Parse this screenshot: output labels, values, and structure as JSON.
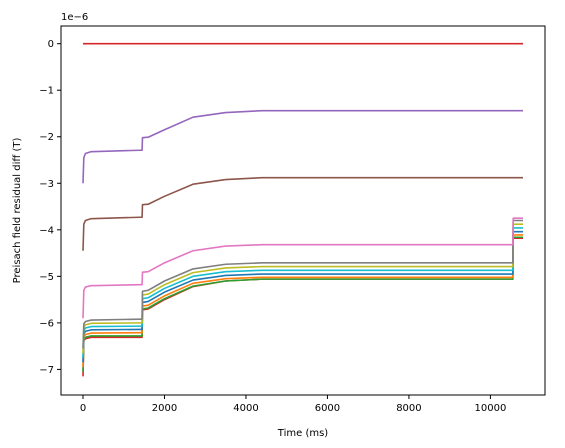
{
  "chart_data": {
    "type": "line",
    "title": "",
    "xlabel": "Time (ms)",
    "ylabel": "Preisach field residual diff (T)",
    "offset_text": "1e−6",
    "xlim": [
      -540,
      11340
    ],
    "ylim": [
      -7.55,
      0.38
    ],
    "xticks": [
      0,
      2000,
      4000,
      6000,
      8000,
      10000
    ],
    "xtick_labels": [
      "0",
      "2000",
      "4000",
      "6000",
      "8000",
      "10000"
    ],
    "yticks": [
      0,
      -1,
      -2,
      -3,
      -4,
      -5,
      -6,
      -7
    ],
    "ytick_labels": [
      "0",
      "−1",
      "−2",
      "−3",
      "−4",
      "−5",
      "−6",
      "−7"
    ],
    "grid": false,
    "legend": "none",
    "series": [
      {
        "color": "#d62728",
        "x": [
          0,
          10800
        ],
        "y": [
          0,
          0
        ]
      },
      {
        "color": "#9467bd",
        "x": [
          0,
          20,
          60,
          200,
          1400,
          1450,
          1460,
          1600,
          2000,
          2700,
          3500,
          4400,
          6000,
          10800
        ],
        "y": [
          -3.0,
          -2.45,
          -2.36,
          -2.32,
          -2.29,
          -2.29,
          -2.02,
          -2.01,
          -1.85,
          -1.58,
          -1.48,
          -1.44,
          -1.44,
          -1.44
        ]
      },
      {
        "color": "#8c564b",
        "x": [
          0,
          20,
          60,
          200,
          1400,
          1450,
          1460,
          1600,
          2000,
          2700,
          3500,
          4400,
          6000,
          10800
        ],
        "y": [
          -4.45,
          -3.88,
          -3.8,
          -3.76,
          -3.73,
          -3.73,
          -3.46,
          -3.45,
          -3.28,
          -3.02,
          -2.92,
          -2.88,
          -2.88,
          -2.88
        ]
      },
      {
        "color": "#e377c2",
        "x": [
          0,
          20,
          60,
          200,
          1400,
          1450,
          1460,
          1600,
          2000,
          2700,
          3500,
          4400,
          6000,
          10550,
          10560,
          10800
        ],
        "y": [
          -5.9,
          -5.3,
          -5.23,
          -5.2,
          -5.18,
          -5.18,
          -4.91,
          -4.9,
          -4.71,
          -4.45,
          -4.35,
          -4.32,
          -4.32,
          -4.32,
          -3.75,
          -3.75
        ]
      },
      {
        "color": "#7f7f7f",
        "x": [
          0,
          20,
          60,
          200,
          1400,
          1450,
          1460,
          1600,
          2000,
          2700,
          3500,
          4400,
          6000,
          10550,
          10560,
          10800
        ],
        "y": [
          -6.55,
          -6.02,
          -5.97,
          -5.94,
          -5.92,
          -5.92,
          -5.32,
          -5.3,
          -5.1,
          -4.84,
          -4.74,
          -4.71,
          -4.71,
          -4.71,
          -3.8,
          -3.8
        ]
      },
      {
        "color": "#bcbd22",
        "x": [
          0,
          20,
          60,
          200,
          1400,
          1450,
          1460,
          1600,
          2000,
          2700,
          3500,
          4400,
          6000,
          10550,
          10560,
          10800
        ],
        "y": [
          -6.65,
          -6.1,
          -6.04,
          -6.01,
          -6.0,
          -6.0,
          -5.4,
          -5.38,
          -5.18,
          -4.92,
          -4.82,
          -4.79,
          -4.79,
          -4.79,
          -3.88,
          -3.88
        ]
      },
      {
        "color": "#17becf",
        "x": [
          0,
          20,
          60,
          200,
          1400,
          1450,
          1460,
          1600,
          2000,
          2700,
          3500,
          4400,
          6000,
          10550,
          10560,
          10800
        ],
        "y": [
          -6.75,
          -6.17,
          -6.11,
          -6.08,
          -6.07,
          -6.07,
          -5.48,
          -5.46,
          -5.26,
          -5.0,
          -4.9,
          -4.87,
          -4.87,
          -4.87,
          -3.96,
          -3.96
        ]
      },
      {
        "color": "#1f77b4",
        "x": [
          0,
          20,
          60,
          200,
          1400,
          1450,
          1460,
          1600,
          2000,
          2700,
          3500,
          4400,
          6000,
          10550,
          10560,
          10800
        ],
        "y": [
          -6.85,
          -6.24,
          -6.18,
          -6.15,
          -6.14,
          -6.14,
          -5.56,
          -5.54,
          -5.34,
          -5.08,
          -4.98,
          -4.95,
          -4.95,
          -4.95,
          -4.04,
          -4.04
        ]
      },
      {
        "color": "#ff7f0e",
        "x": [
          0,
          20,
          60,
          200,
          1400,
          1450,
          1460,
          1600,
          2000,
          2700,
          3500,
          4400,
          6000,
          10550,
          10560,
          10800
        ],
        "y": [
          -6.95,
          -6.3,
          -6.25,
          -6.22,
          -6.21,
          -6.21,
          -5.64,
          -5.62,
          -5.42,
          -5.15,
          -5.05,
          -5.02,
          -5.02,
          -5.02,
          -4.11,
          -4.11
        ]
      },
      {
        "color": "#2ca02c",
        "x": [
          0,
          20,
          60,
          200,
          1400,
          1450,
          1460,
          1600,
          2000,
          2700,
          3500,
          4400,
          6000,
          10550,
          10560,
          10800
        ],
        "y": [
          -7.05,
          -6.35,
          -6.31,
          -6.28,
          -6.28,
          -6.28,
          -5.7,
          -5.68,
          -5.48,
          -5.21,
          -5.1,
          -5.06,
          -5.06,
          -5.06,
          -4.16,
          -4.16
        ]
      },
      {
        "color": "#d62728",
        "x": [
          0,
          20,
          60,
          200,
          1400,
          1450,
          1460,
          1600,
          2000,
          2700,
          3500,
          4400,
          6000,
          10550,
          10560,
          10800
        ],
        "y": [
          -7.15,
          -6.38,
          -6.34,
          -6.31,
          -6.31,
          -6.31,
          -5.72,
          -5.7,
          -5.5,
          -5.22,
          -5.1,
          -5.06,
          -5.06,
          -5.06,
          -4.18,
          -4.18
        ]
      }
    ]
  }
}
